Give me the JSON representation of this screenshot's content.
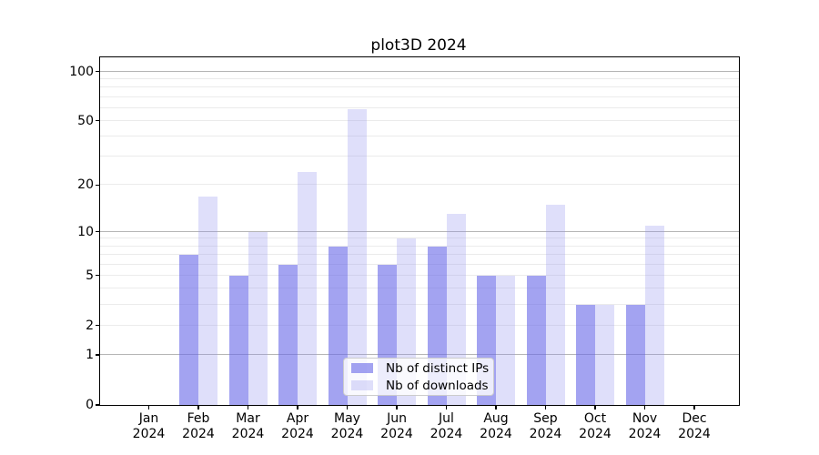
{
  "title": "plot3D 2024",
  "legend": {
    "items": [
      {
        "label": "Nb of distinct IPs",
        "color": "rgba(106,106,232,0.62)"
      },
      {
        "label": "Nb of downloads",
        "color": "rgba(148,148,240,0.30)"
      }
    ]
  },
  "chart_data": {
    "type": "bar",
    "title": "plot3D 2024",
    "categories": [
      "Jan 2024",
      "Feb 2024",
      "Mar 2024",
      "Apr 2024",
      "May 2024",
      "Jun 2024",
      "Jul 2024",
      "Aug 2024",
      "Sep 2024",
      "Oct 2024",
      "Nov 2024",
      "Dec 2024"
    ],
    "series": [
      {
        "name": "Nb of distinct IPs",
        "values": [
          0,
          7,
          5,
          6,
          8,
          6,
          8,
          5,
          5,
          3,
          3,
          0
        ],
        "color": "rgba(106,106,232,0.62)"
      },
      {
        "name": "Nb of downloads",
        "values": [
          0,
          17,
          10,
          24,
          59,
          9,
          13,
          5,
          15,
          3,
          11,
          0
        ],
        "color": "rgba(148,148,240,0.30)"
      }
    ],
    "yscale": "log1p",
    "ylim": [
      0,
      122
    ],
    "yticks": [
      0,
      1,
      2,
      5,
      10,
      20,
      50,
      100
    ],
    "major_gridlines": [
      1,
      10,
      100
    ],
    "minor_gridlines": [
      2,
      3,
      4,
      5,
      6,
      7,
      8,
      9,
      20,
      30,
      40,
      50,
      60,
      70,
      80,
      90
    ],
    "grid_major_color": "#b5b5b5",
    "grid_minor_color": "#ebebeb",
    "legend_position": "lower center",
    "xlabel": "",
    "ylabel": ""
  }
}
